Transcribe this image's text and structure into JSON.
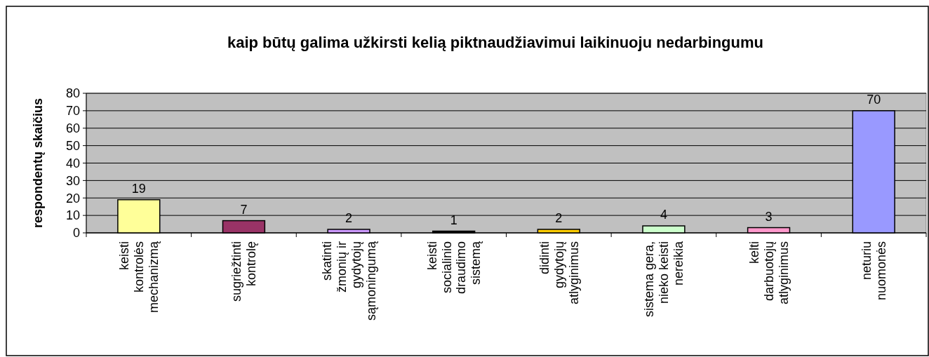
{
  "chart_data": {
    "type": "bar",
    "title": "kaip būtų galima užkirsti kelią piktnaudžiavimui laikinuoju nedarbingumu",
    "ylabel": "respondentų skaičius",
    "categories": [
      "keisti kontrolės mechanizmą",
      "sugriežtinti kontrolę",
      "skatinti žmonių ir gydytojų sąmoningumą",
      "keisti socialinio draudimo sistemą",
      "didinti gydytojų atlyginimus",
      "sistema gera, nieko keisti nereikia",
      "kelti darbuotojų atlyginimus",
      "neturiu nuomonės"
    ],
    "values": [
      19,
      7,
      2,
      1,
      2,
      4,
      3,
      70
    ],
    "colors": [
      "#ffff99",
      "#993366",
      "#cc99ff",
      "#000000",
      "#ffcc00",
      "#ccffcc",
      "#ff99cc",
      "#9999ff"
    ],
    "ylim": [
      0,
      80
    ],
    "yticks": [
      0,
      10,
      20,
      30,
      40,
      50,
      60,
      70,
      80
    ],
    "grid": "y",
    "data_labels": true
  }
}
